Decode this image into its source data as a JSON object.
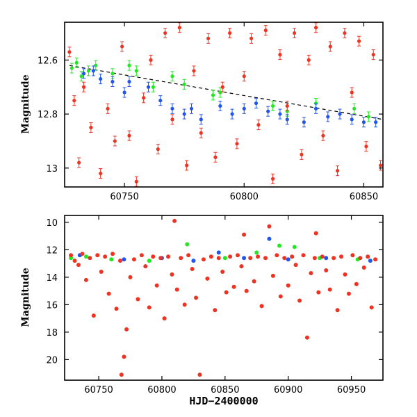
{
  "chart_data": [
    {
      "type": "scatter",
      "panel": "top",
      "xlabel": "",
      "ylabel": "Magnitude",
      "xlim": [
        60725,
        60858
      ],
      "ylim": [
        13.07,
        12.46
      ],
      "y_inverted": true,
      "x_ticks": [
        60750,
        60800,
        60850
      ],
      "y_ticks": [
        12.6,
        12.8,
        13
      ],
      "y_tick_labels": [
        "12.6",
        "12.8",
        "13"
      ],
      "grid": false,
      "trend_line": {
        "x": [
          60727,
          60858
        ],
        "y": [
          12.62,
          12.82
        ],
        "style": "dashed",
        "color": "#000000"
      },
      "series": [
        {
          "color": "#22e822",
          "points": [
            [
              60728,
              12.63
            ],
            [
              60730,
              12.61
            ],
            [
              60732,
              12.66
            ],
            [
              60735,
              12.64
            ],
            [
              60738,
              12.62
            ],
            [
              60745,
              12.65
            ],
            [
              60752,
              12.62
            ],
            [
              60755,
              12.64
            ],
            [
              60762,
              12.7
            ],
            [
              60770,
              12.66
            ],
            [
              60775,
              12.69
            ],
            [
              60787,
              12.73
            ],
            [
              60790,
              12.72
            ],
            [
              60812,
              12.77
            ],
            [
              60818,
              12.79
            ],
            [
              60830,
              12.76
            ],
            [
              60846,
              12.78
            ],
            [
              60852,
              12.81
            ]
          ]
        },
        {
          "color": "#2255ee",
          "points": [
            [
              60733,
              12.65
            ],
            [
              60737,
              12.64
            ],
            [
              60740,
              12.67
            ],
            [
              60745,
              12.68
            ],
            [
              60750,
              12.72
            ],
            [
              60752,
              12.68
            ],
            [
              60760,
              12.7
            ],
            [
              60765,
              12.75
            ],
            [
              60770,
              12.78
            ],
            [
              60775,
              12.8
            ],
            [
              60778,
              12.78
            ],
            [
              60782,
              12.82
            ],
            [
              60790,
              12.77
            ],
            [
              60795,
              12.8
            ],
            [
              60800,
              12.78
            ],
            [
              60805,
              12.76
            ],
            [
              60810,
              12.79
            ],
            [
              60815,
              12.8
            ],
            [
              60818,
              12.82
            ],
            [
              60825,
              12.83
            ],
            [
              60830,
              12.78
            ],
            [
              60835,
              12.81
            ],
            [
              60840,
              12.8
            ],
            [
              60845,
              12.82
            ],
            [
              60850,
              12.83
            ],
            [
              60855,
              12.83
            ]
          ]
        },
        {
          "color": "#ee3322",
          "points": [
            [
              60727,
              12.57
            ],
            [
              60729,
              12.75
            ],
            [
              60731,
              12.98
            ],
            [
              60733,
              12.7
            ],
            [
              60736,
              12.85
            ],
            [
              60740,
              13.02
            ],
            [
              60743,
              12.78
            ],
            [
              60746,
              12.9
            ],
            [
              60749,
              12.55
            ],
            [
              60752,
              12.88
            ],
            [
              60755,
              13.05
            ],
            [
              60758,
              12.74
            ],
            [
              60761,
              12.6
            ],
            [
              60764,
              12.93
            ],
            [
              60767,
              12.5
            ],
            [
              60770,
              12.82
            ],
            [
              60773,
              12.48
            ],
            [
              60776,
              12.99
            ],
            [
              60779,
              12.64
            ],
            [
              60782,
              12.87
            ],
            [
              60785,
              12.52
            ],
            [
              60788,
              12.96
            ],
            [
              60791,
              12.7
            ],
            [
              60794,
              12.5
            ],
            [
              60797,
              12.91
            ],
            [
              60800,
              12.66
            ],
            [
              60803,
              12.52
            ],
            [
              60806,
              12.84
            ],
            [
              60809,
              12.49
            ],
            [
              60812,
              13.04
            ],
            [
              60815,
              12.58
            ],
            [
              60818,
              12.77
            ],
            [
              60821,
              12.5
            ],
            [
              60824,
              12.95
            ],
            [
              60827,
              12.6
            ],
            [
              60830,
              12.48
            ],
            [
              60833,
              12.88
            ],
            [
              60836,
              12.55
            ],
            [
              60839,
              13.01
            ],
            [
              60842,
              12.5
            ],
            [
              60845,
              12.72
            ],
            [
              60848,
              12.53
            ],
            [
              60851,
              12.92
            ],
            [
              60854,
              12.58
            ],
            [
              60857,
              12.99
            ]
          ]
        }
      ]
    },
    {
      "type": "scatter",
      "panel": "bottom",
      "xlabel": "HJD−2400000",
      "ylabel": "Magnitude",
      "xlim": [
        60723,
        60975
      ],
      "ylim": [
        21.5,
        9.5
      ],
      "y_inverted": true,
      "x_ticks": [
        60750,
        60800,
        60850,
        60900,
        60950
      ],
      "y_ticks": [
        10,
        12,
        14,
        16,
        18,
        20
      ],
      "y_tick_labels": [
        "10",
        "12",
        "14",
        "16",
        "18",
        "20"
      ],
      "grid": false,
      "series": [
        {
          "color": "#22e822",
          "points": [
            [
              60728,
              12.6
            ],
            [
              60740,
              12.5
            ],
            [
              60760,
              12.7
            ],
            [
              60790,
              12.8
            ],
            [
              60820,
              11.6
            ],
            [
              60850,
              12.6
            ],
            [
              60875,
              12.2
            ],
            [
              60893,
              11.7
            ],
            [
              60905,
              11.8
            ],
            [
              60925,
              12.6
            ],
            [
              60955,
              12.7
            ]
          ]
        },
        {
          "color": "#2255ee",
          "points": [
            [
              60735,
              12.4
            ],
            [
              60770,
              12.7
            ],
            [
              60800,
              12.6
            ],
            [
              60825,
              12.8
            ],
            [
              60845,
              12.2
            ],
            [
              60865,
              12.6
            ],
            [
              60885,
              11.2
            ],
            [
              60900,
              12.7
            ],
            [
              60930,
              12.6
            ],
            [
              60965,
              12.8
            ]
          ]
        },
        {
          "color": "#ee3322",
          "points": [
            [
              60728,
              12.4
            ],
            [
              60731,
              12.8
            ],
            [
              60734,
              13.1
            ],
            [
              60737,
              12.3
            ],
            [
              60740,
              14.2
            ],
            [
              60743,
              12.6
            ],
            [
              60746,
              16.8
            ],
            [
              60749,
              12.4
            ],
            [
              60752,
              13.6
            ],
            [
              60755,
              12.5
            ],
            [
              60758,
              15.2
            ],
            [
              60761,
              12.3
            ],
            [
              60764,
              16.3
            ],
            [
              60767,
              12.8
            ],
            [
              60768,
              21.1
            ],
            [
              60770,
              19.8
            ],
            [
              60772,
              17.8
            ],
            [
              60775,
              14.0
            ],
            [
              60778,
              12.7
            ],
            [
              60781,
              15.6
            ],
            [
              60784,
              12.4
            ],
            [
              60787,
              13.2
            ],
            [
              60790,
              16.2
            ],
            [
              60793,
              12.5
            ],
            [
              60796,
              14.6
            ],
            [
              60799,
              12.6
            ],
            [
              60802,
              17.0
            ],
            [
              60805,
              12.5
            ],
            [
              60808,
              13.8
            ],
            [
              60810,
              9.9
            ],
            [
              60812,
              14.9
            ],
            [
              60815,
              12.6
            ],
            [
              60818,
              16.0
            ],
            [
              60821,
              12.4
            ],
            [
              60824,
              13.4
            ],
            [
              60827,
              15.5
            ],
            [
              60830,
              21.1
            ],
            [
              60833,
              12.7
            ],
            [
              60836,
              14.1
            ],
            [
              60839,
              12.5
            ],
            [
              60842,
              16.4
            ],
            [
              60845,
              12.6
            ],
            [
              60848,
              13.6
            ],
            [
              60851,
              15.1
            ],
            [
              60854,
              12.5
            ],
            [
              60857,
              14.7
            ],
            [
              60860,
              12.4
            ],
            [
              60863,
              13.2
            ],
            [
              60865,
              10.9
            ],
            [
              60867,
              15.0
            ],
            [
              60870,
              12.6
            ],
            [
              60873,
              14.3
            ],
            [
              60876,
              12.5
            ],
            [
              60879,
              16.1
            ],
            [
              60882,
              12.6
            ],
            [
              60885,
              10.3
            ],
            [
              60888,
              13.9
            ],
            [
              60891,
              12.4
            ],
            [
              60894,
              15.4
            ],
            [
              60897,
              12.6
            ],
            [
              60900,
              14.6
            ],
            [
              60903,
              12.5
            ],
            [
              60906,
              13.1
            ],
            [
              60909,
              15.7
            ],
            [
              60912,
              12.4
            ],
            [
              60915,
              18.4
            ],
            [
              60918,
              13.7
            ],
            [
              60921,
              12.6
            ],
            [
              60922,
              10.8
            ],
            [
              60924,
              15.1
            ],
            [
              60927,
              12.5
            ],
            [
              60930,
              13.5
            ],
            [
              60933,
              14.9
            ],
            [
              60936,
              12.6
            ],
            [
              60939,
              16.4
            ],
            [
              60942,
              12.5
            ],
            [
              60945,
              13.8
            ],
            [
              60948,
              15.2
            ],
            [
              60951,
              12.4
            ],
            [
              60954,
              14.5
            ],
            [
              60957,
              12.6
            ],
            [
              60960,
              13.3
            ],
            [
              60963,
              12.5
            ],
            [
              60966,
              16.2
            ],
            [
              60969,
              12.7
            ]
          ]
        }
      ]
    }
  ]
}
